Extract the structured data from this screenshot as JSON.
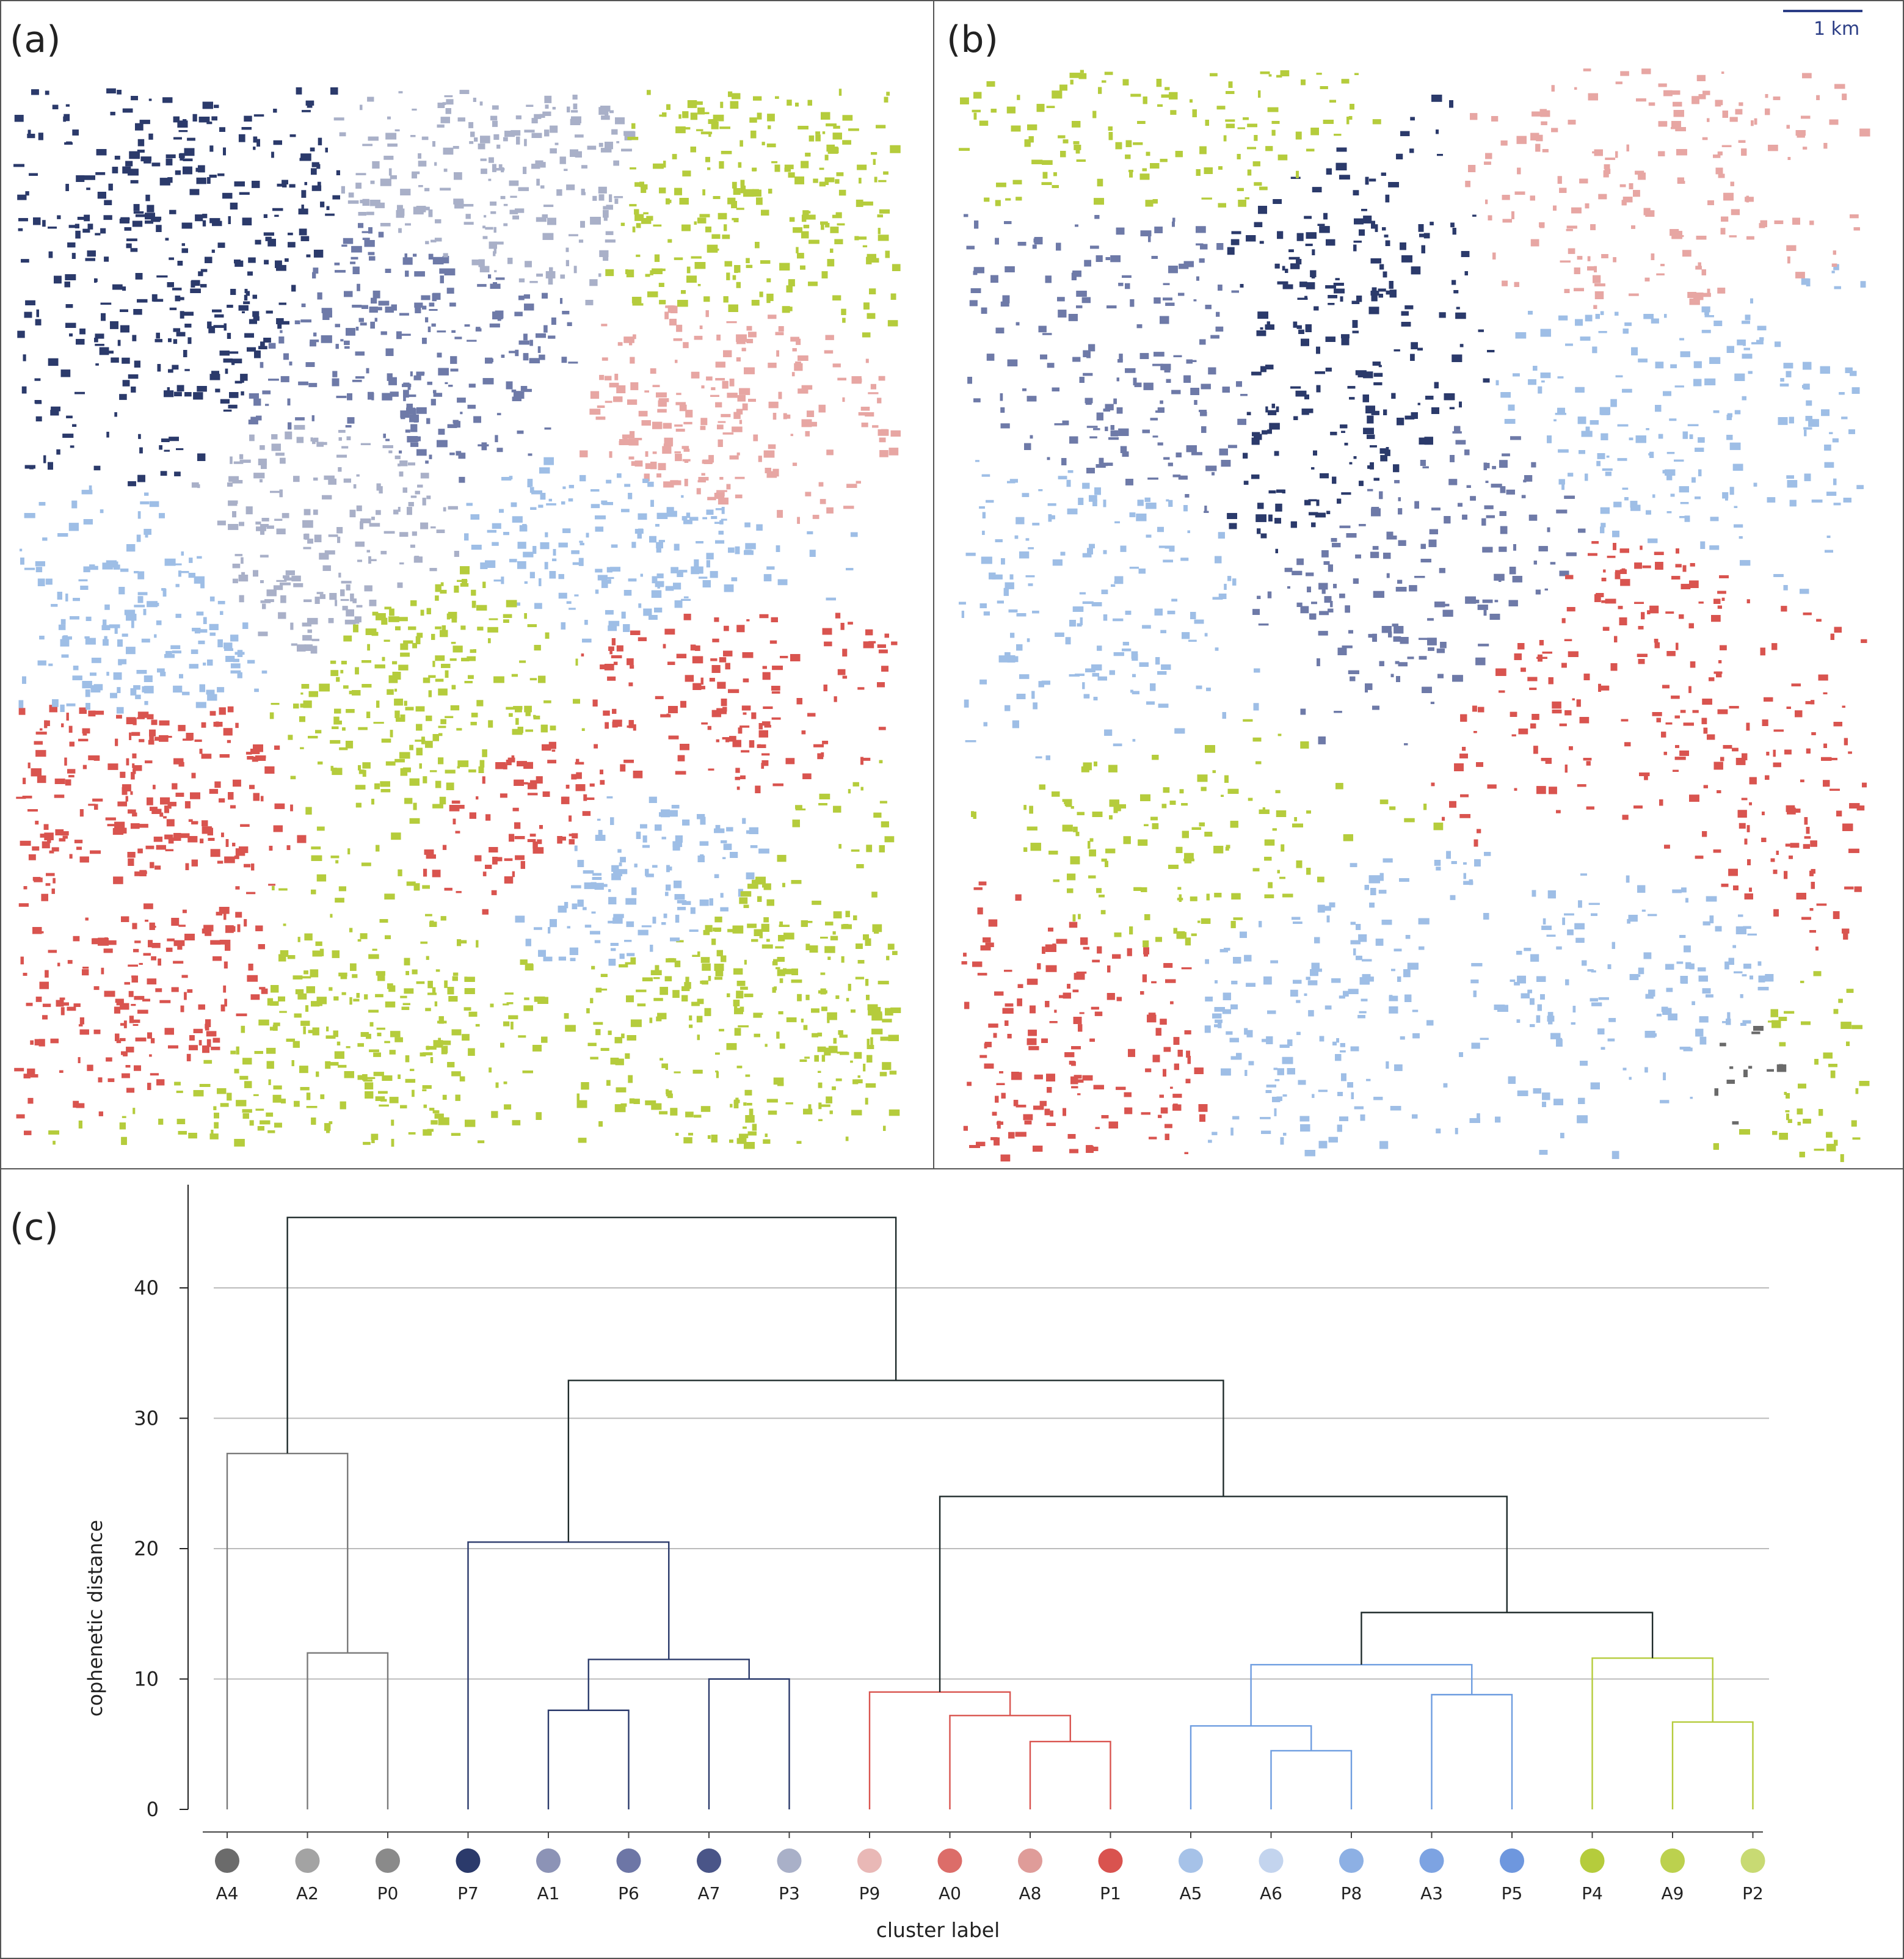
{
  "panels": {
    "a_label": "(a)",
    "b_label": "(b)",
    "c_label": "(c)",
    "scale_bar_label": "1 km"
  },
  "colors": {
    "dark_navy": "#2b3a6b",
    "navy": "#3b4a80",
    "slate": "#6e7aa8",
    "light_slate": "#a9b0c8",
    "light_blue": "#9ebee6",
    "blue": "#6e9de0",
    "red": "#d9544f",
    "light_red": "#e7a6a3",
    "lime": "#b5cc3c",
    "grey": "#6a6a6a"
  },
  "chart_data": {
    "type": "dendrogram",
    "xlabel": "cluster label",
    "ylabel": "cophenetic distance",
    "ylim": [
      0,
      47
    ],
    "yticks": [
      0,
      10,
      20,
      30,
      40
    ],
    "grid": true,
    "leaves": [
      {
        "label": "A4",
        "color": "#6b6b6b"
      },
      {
        "label": "A2",
        "color": "#a3a3a3"
      },
      {
        "label": "P0",
        "color": "#8a8a8a"
      },
      {
        "label": "P7",
        "color": "#2b3a6b"
      },
      {
        "label": "A1",
        "color": "#8c93b6"
      },
      {
        "label": "P6",
        "color": "#6d76a6"
      },
      {
        "label": "A7",
        "color": "#4a5588"
      },
      {
        "label": "P3",
        "color": "#a9b0c8"
      },
      {
        "label": "P9",
        "color": "#e9b8b6"
      },
      {
        "label": "A0",
        "color": "#dc6d69"
      },
      {
        "label": "A8",
        "color": "#df9c99"
      },
      {
        "label": "P1",
        "color": "#d9534f"
      },
      {
        "label": "A5",
        "color": "#a6c2e8"
      },
      {
        "label": "A6",
        "color": "#c3d4ee"
      },
      {
        "label": "P8",
        "color": "#8db0e4"
      },
      {
        "label": "A3",
        "color": "#7da3e2"
      },
      {
        "label": "P5",
        "color": "#6e97de"
      },
      {
        "label": "P4",
        "color": "#b5cc3c"
      },
      {
        "label": "A9",
        "color": "#bcd14e"
      },
      {
        "label": "P2",
        "color": "#c8da73"
      }
    ],
    "merges": [
      {
        "left": "A2",
        "right": "P0",
        "height": 12.0,
        "color": "#7a7a7a"
      },
      {
        "left": "A4",
        "right": "A2+P0",
        "height": 27.3,
        "color": "#7a7a7a"
      },
      {
        "left": "A1",
        "right": "P6",
        "height": 7.6,
        "color": "#2b3a6b"
      },
      {
        "left": "A7",
        "right": "P3",
        "height": 10.0,
        "color": "#2b3a6b"
      },
      {
        "left": "A1+P6",
        "right": "A7+P3",
        "height": 11.5,
        "color": "#2b3a6b"
      },
      {
        "left": "P7",
        "right": "A1+P6+A7+P3",
        "height": 20.5,
        "color": "#2b3a6b"
      },
      {
        "left": "A8",
        "right": "P1",
        "height": 5.2,
        "color": "#d9544f"
      },
      {
        "left": "A0",
        "right": "A8+P1",
        "height": 7.2,
        "color": "#d9544f"
      },
      {
        "left": "P9",
        "right": "A0+A8+P1",
        "height": 9.0,
        "color": "#d9544f"
      },
      {
        "left": "A6",
        "right": "P8",
        "height": 4.5,
        "color": "#6e9de0"
      },
      {
        "left": "A5",
        "right": "A6+P8",
        "height": 6.4,
        "color": "#6e9de0"
      },
      {
        "left": "A3",
        "right": "P5",
        "height": 8.8,
        "color": "#6e9de0"
      },
      {
        "left": "A5+A6+P8",
        "right": "A3+P5",
        "height": 11.1,
        "color": "#6e9de0"
      },
      {
        "left": "A9",
        "right": "P2",
        "height": 6.7,
        "color": "#b5cc3c"
      },
      {
        "left": "P4",
        "right": "A9+P2",
        "height": 11.6,
        "color": "#b5cc3c"
      },
      {
        "left": "blue-group",
        "right": "lime-group",
        "height": 15.1,
        "color": "#1e2a2a"
      },
      {
        "left": "red-group",
        "right": "blue+lime",
        "height": 24.0,
        "color": "#1e2a2a"
      },
      {
        "left": "navy-group",
        "right": "red+blue+lime",
        "height": 32.9,
        "color": "#1e2a2a"
      },
      {
        "left": "grey-group",
        "right": "rest",
        "height": 45.4,
        "color": "#1e2a2a"
      }
    ]
  }
}
